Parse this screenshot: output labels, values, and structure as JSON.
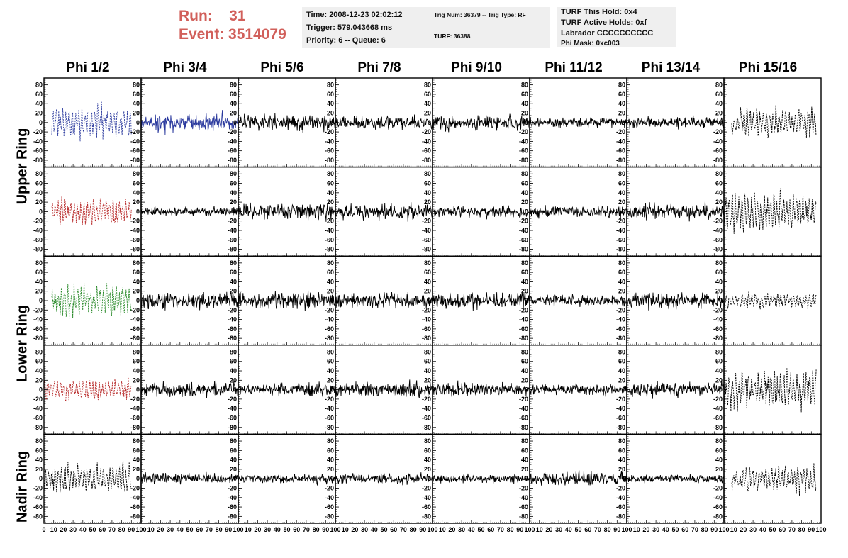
{
  "header": {
    "run_label": "Run:",
    "run_value": "31",
    "event_label": "Event:",
    "event_value": "3514079",
    "time": "Time: 2008-12-23 02:02:12",
    "trigger": "Trigger: 579.043668 ms",
    "priority": "Priority: 6 -- Queue: 6",
    "trig_num": "Trig Num: 36379 -- Trig Type: RF",
    "turf": "TURF: 36388",
    "turf_hold": "TURF This Hold: 0x4",
    "turf_active": "TURF Active Holds: 0xf",
    "labrador": "Labrador CCCCCCCCCC",
    "phi_mask": "Phi Mask: 0xc003"
  },
  "columns": [
    "Phi 1/2",
    "Phi 3/4",
    "Phi 5/6",
    "Phi 7/8",
    "Phi 9/10",
    "Phi 11/12",
    "Phi 13/14",
    "Phi 15/16"
  ],
  "row_groups": [
    {
      "label": "Upper Ring",
      "rows": [
        0,
        1
      ]
    },
    {
      "label": "Lower Ring",
      "rows": [
        2,
        3
      ]
    },
    {
      "label": "Nadir Ring",
      "rows": [
        4
      ]
    }
  ],
  "colors": {
    "blue": "#2b3a9e",
    "red": "#b82a2a",
    "green": "#2a8a2a",
    "black": "#000000",
    "header_red": "#d15f5a",
    "info_bg": "#efefef"
  },
  "chart_data": {
    "type": "line",
    "grid": {
      "rows": 5,
      "cols": 8
    },
    "xlim": [
      0,
      100
    ],
    "ylim": [
      -90,
      90
    ],
    "y_ticks": [
      -80,
      -60,
      -40,
      -20,
      0,
      20,
      40,
      60,
      80
    ],
    "x_tick_labels": [
      "0",
      "10",
      "20",
      "30",
      "40",
      "50",
      "60",
      "70",
      "80",
      "90",
      "100"
    ],
    "traces": [
      [
        {
          "color": "blue",
          "amp": 28,
          "style": "dashed",
          "x_range": [
            8,
            90
          ]
        },
        {
          "color": "blue",
          "amp": 14,
          "style": "solid",
          "x_range": [
            0,
            100
          ]
        },
        {
          "color": "black",
          "amp": 13,
          "style": "solid",
          "x_range": [
            0,
            100
          ]
        },
        {
          "color": "black",
          "amp": 10,
          "style": "solid",
          "x_range": [
            0,
            100
          ]
        },
        {
          "color": "black",
          "amp": 12,
          "style": "solid",
          "x_range": [
            0,
            100
          ]
        },
        {
          "color": "black",
          "amp": 8,
          "style": "solid",
          "x_range": [
            0,
            100
          ]
        },
        {
          "color": "black",
          "amp": 9,
          "style": "solid",
          "x_range": [
            0,
            100
          ]
        },
        {
          "color": "black",
          "amp": 26,
          "style": "dashed",
          "x_range": [
            8,
            95
          ]
        }
      ],
      [
        {
          "color": "red",
          "amp": 22,
          "style": "dashed",
          "x_range": [
            8,
            90
          ]
        },
        {
          "color": "black",
          "amp": 7,
          "style": "solid",
          "x_range": [
            0,
            100
          ]
        },
        {
          "color": "black",
          "amp": 13,
          "style": "solid",
          "x_range": [
            0,
            100
          ]
        },
        {
          "color": "black",
          "amp": 12,
          "style": "solid",
          "x_range": [
            0,
            100
          ]
        },
        {
          "color": "black",
          "amp": 10,
          "style": "solid",
          "x_range": [
            0,
            100
          ]
        },
        {
          "color": "black",
          "amp": 9,
          "style": "solid",
          "x_range": [
            0,
            100
          ]
        },
        {
          "color": "black",
          "amp": 12,
          "style": "solid",
          "x_range": [
            0,
            100
          ]
        },
        {
          "color": "black",
          "amp": 32,
          "style": "dashed",
          "x_range": [
            0,
            95
          ]
        }
      ],
      [
        {
          "color": "green",
          "amp": 28,
          "style": "dashed",
          "x_range": [
            8,
            90
          ]
        },
        {
          "color": "black",
          "amp": 13,
          "style": "solid",
          "x_range": [
            0,
            100
          ]
        },
        {
          "color": "black",
          "amp": 14,
          "style": "solid",
          "x_range": [
            0,
            100
          ]
        },
        {
          "color": "black",
          "amp": 12,
          "style": "solid",
          "x_range": [
            0,
            100
          ]
        },
        {
          "color": "black",
          "amp": 13,
          "style": "solid",
          "x_range": [
            0,
            100
          ]
        },
        {
          "color": "black",
          "amp": 10,
          "style": "solid",
          "x_range": [
            0,
            100
          ]
        },
        {
          "color": "black",
          "amp": 12,
          "style": "solid",
          "x_range": [
            0,
            100
          ]
        },
        {
          "color": "black",
          "amp": 14,
          "style": "dashed",
          "x_range": [
            0,
            95
          ]
        }
      ],
      [
        {
          "color": "red",
          "amp": 18,
          "style": "dashed",
          "x_range": [
            0,
            90
          ]
        },
        {
          "color": "black",
          "amp": 12,
          "style": "solid",
          "x_range": [
            0,
            100
          ]
        },
        {
          "color": "black",
          "amp": 10,
          "style": "solid",
          "x_range": [
            0,
            100
          ]
        },
        {
          "color": "black",
          "amp": 12,
          "style": "solid",
          "x_range": [
            0,
            100
          ]
        },
        {
          "color": "black",
          "amp": 11,
          "style": "solid",
          "x_range": [
            0,
            100
          ]
        },
        {
          "color": "black",
          "amp": 9,
          "style": "solid",
          "x_range": [
            0,
            100
          ]
        },
        {
          "color": "black",
          "amp": 11,
          "style": "solid",
          "x_range": [
            0,
            100
          ]
        },
        {
          "color": "black",
          "amp": 32,
          "style": "dashed",
          "x_range": [
            0,
            95
          ]
        }
      ],
      [
        {
          "color": "black",
          "amp": 25,
          "style": "dashed",
          "x_range": [
            0,
            90
          ]
        },
        {
          "color": "black",
          "amp": 8,
          "style": "solid",
          "x_range": [
            0,
            100
          ]
        },
        {
          "color": "black",
          "amp": 7,
          "style": "solid",
          "x_range": [
            0,
            100
          ]
        },
        {
          "color": "black",
          "amp": 8,
          "style": "solid",
          "x_range": [
            0,
            100
          ]
        },
        {
          "color": "black",
          "amp": 7,
          "style": "solid",
          "x_range": [
            0,
            100
          ]
        },
        {
          "color": "black",
          "amp": 11,
          "style": "solid",
          "x_range": [
            0,
            100
          ]
        },
        {
          "color": "black",
          "amp": 6,
          "style": "solid",
          "x_range": [
            0,
            100
          ]
        },
        {
          "color": "black",
          "amp": 22,
          "style": "dashed",
          "x_range": [
            8,
            95
          ]
        }
      ]
    ]
  }
}
